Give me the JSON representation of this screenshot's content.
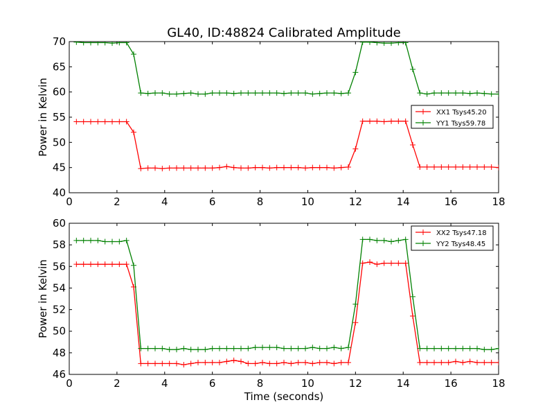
{
  "title": "GL40, ID:48824 Calibrated Amplitude",
  "colors": {
    "xx": "#ff0000",
    "yy": "#008000"
  },
  "chart_data": [
    {
      "type": "line",
      "ylabel": "Power in Kelvin",
      "xlabel": "",
      "xlim": [
        0,
        18
      ],
      "ylim": [
        40,
        70
      ],
      "xticks": [
        0,
        2,
        4,
        6,
        8,
        10,
        12,
        14,
        16,
        18
      ],
      "yticks": [
        40,
        45,
        50,
        55,
        60,
        65,
        70
      ],
      "legend_position": "right-middle",
      "series": [
        {
          "name": "XX1 Tsys45.20",
          "color": "#ff0000",
          "x": [
            0.3,
            0.6,
            0.9,
            1.2,
            1.5,
            1.8,
            2.1,
            2.4,
            2.7,
            3.0,
            3.3,
            3.6,
            3.9,
            4.2,
            4.5,
            4.8,
            5.1,
            5.4,
            5.7,
            6.0,
            6.3,
            6.6,
            6.9,
            7.2,
            7.5,
            7.8,
            8.1,
            8.4,
            8.7,
            9.0,
            9.3,
            9.6,
            9.9,
            10.2,
            10.5,
            10.8,
            11.1,
            11.4,
            11.7,
            12.0,
            12.3,
            12.6,
            12.9,
            13.2,
            13.5,
            13.8,
            14.1,
            14.4,
            14.7,
            15.0,
            15.3,
            15.6,
            15.9,
            16.2,
            16.5,
            16.8,
            17.1,
            17.4,
            17.7,
            18.0
          ],
          "y": [
            54.1,
            54.1,
            54.1,
            54.1,
            54.1,
            54.1,
            54.1,
            54.1,
            52.0,
            44.8,
            44.9,
            44.9,
            44.8,
            44.9,
            44.9,
            44.9,
            44.9,
            44.9,
            44.9,
            44.9,
            45.0,
            45.2,
            45.0,
            44.9,
            44.9,
            45.0,
            45.0,
            44.9,
            45.0,
            45.0,
            45.0,
            45.0,
            44.9,
            45.0,
            45.0,
            45.0,
            44.9,
            45.0,
            45.1,
            48.7,
            54.2,
            54.2,
            54.2,
            54.1,
            54.2,
            54.2,
            54.2,
            49.5,
            45.1,
            45.1,
            45.1,
            45.1,
            45.1,
            45.1,
            45.1,
            45.1,
            45.1,
            45.1,
            45.1,
            45.0
          ]
        },
        {
          "name": "YY1 Tsys59.78",
          "color": "#008000",
          "x": [
            0.3,
            0.6,
            0.9,
            1.2,
            1.5,
            1.8,
            2.1,
            2.4,
            2.7,
            3.0,
            3.3,
            3.6,
            3.9,
            4.2,
            4.5,
            4.8,
            5.1,
            5.4,
            5.7,
            6.0,
            6.3,
            6.6,
            6.9,
            7.2,
            7.5,
            7.8,
            8.1,
            8.4,
            8.7,
            9.0,
            9.3,
            9.6,
            9.9,
            10.2,
            10.5,
            10.8,
            11.1,
            11.4,
            11.7,
            12.0,
            12.3,
            12.6,
            12.9,
            13.2,
            13.5,
            13.8,
            14.1,
            14.4,
            14.7,
            15.0,
            15.3,
            15.6,
            15.9,
            16.2,
            16.5,
            16.8,
            17.1,
            17.4,
            17.7,
            18.0
          ],
          "y": [
            69.9,
            69.8,
            69.8,
            69.8,
            69.8,
            69.7,
            69.8,
            69.8,
            67.5,
            59.8,
            59.7,
            59.8,
            59.8,
            59.6,
            59.6,
            59.7,
            59.8,
            59.6,
            59.6,
            59.8,
            59.8,
            59.8,
            59.7,
            59.8,
            59.8,
            59.8,
            59.8,
            59.8,
            59.8,
            59.7,
            59.8,
            59.8,
            59.8,
            59.6,
            59.7,
            59.8,
            59.8,
            59.7,
            59.8,
            63.9,
            69.9,
            69.9,
            69.8,
            69.7,
            69.7,
            69.8,
            69.8,
            64.5,
            59.8,
            59.6,
            59.8,
            59.8,
            59.8,
            59.8,
            59.8,
            59.7,
            59.8,
            59.7,
            59.6,
            59.6
          ]
        }
      ]
    },
    {
      "type": "line",
      "ylabel": "Power in Kelvin",
      "xlabel": "Time (seconds)",
      "xlim": [
        0,
        18
      ],
      "ylim": [
        46,
        60
      ],
      "xticks": [
        0,
        2,
        4,
        6,
        8,
        10,
        12,
        14,
        16,
        18
      ],
      "yticks": [
        46,
        48,
        50,
        52,
        54,
        56,
        58,
        60
      ],
      "legend_position": "top-right",
      "series": [
        {
          "name": "XX2 Tsys47.18",
          "color": "#ff0000",
          "x": [
            0.3,
            0.6,
            0.9,
            1.2,
            1.5,
            1.8,
            2.1,
            2.4,
            2.7,
            3.0,
            3.3,
            3.6,
            3.9,
            4.2,
            4.5,
            4.8,
            5.1,
            5.4,
            5.7,
            6.0,
            6.3,
            6.6,
            6.9,
            7.2,
            7.5,
            7.8,
            8.1,
            8.4,
            8.7,
            9.0,
            9.3,
            9.6,
            9.9,
            10.2,
            10.5,
            10.8,
            11.1,
            11.4,
            11.7,
            12.0,
            12.3,
            12.6,
            12.9,
            13.2,
            13.5,
            13.8,
            14.1,
            14.4,
            14.7,
            15.0,
            15.3,
            15.6,
            15.9,
            16.2,
            16.5,
            16.8,
            17.1,
            17.4,
            17.7,
            18.0
          ],
          "y": [
            56.2,
            56.2,
            56.2,
            56.2,
            56.2,
            56.2,
            56.2,
            56.2,
            54.1,
            47.0,
            47.0,
            47.0,
            47.0,
            47.0,
            47.0,
            46.9,
            47.0,
            47.1,
            47.1,
            47.1,
            47.1,
            47.2,
            47.3,
            47.2,
            47.0,
            47.0,
            47.1,
            47.0,
            47.0,
            47.1,
            47.0,
            47.1,
            47.1,
            47.0,
            47.1,
            47.1,
            47.0,
            47.1,
            47.1,
            50.8,
            56.3,
            56.4,
            56.2,
            56.3,
            56.3,
            56.3,
            56.3,
            51.4,
            47.1,
            47.1,
            47.1,
            47.1,
            47.1,
            47.2,
            47.1,
            47.2,
            47.1,
            47.1,
            47.1,
            47.1
          ]
        },
        {
          "name": "YY2 Tsys48.45",
          "color": "#008000",
          "x": [
            0.3,
            0.6,
            0.9,
            1.2,
            1.5,
            1.8,
            2.1,
            2.4,
            2.7,
            3.0,
            3.3,
            3.6,
            3.9,
            4.2,
            4.5,
            4.8,
            5.1,
            5.4,
            5.7,
            6.0,
            6.3,
            6.6,
            6.9,
            7.2,
            7.5,
            7.8,
            8.1,
            8.4,
            8.7,
            9.0,
            9.3,
            9.6,
            9.9,
            10.2,
            10.5,
            10.8,
            11.1,
            11.4,
            11.7,
            12.0,
            12.3,
            12.6,
            12.9,
            13.2,
            13.5,
            13.8,
            14.1,
            14.4,
            14.7,
            15.0,
            15.3,
            15.6,
            15.9,
            16.2,
            16.5,
            16.8,
            17.1,
            17.4,
            17.7,
            18.0
          ],
          "y": [
            58.4,
            58.4,
            58.4,
            58.4,
            58.3,
            58.3,
            58.3,
            58.4,
            56.1,
            48.4,
            48.4,
            48.4,
            48.4,
            48.3,
            48.3,
            48.4,
            48.3,
            48.3,
            48.3,
            48.4,
            48.4,
            48.4,
            48.4,
            48.4,
            48.4,
            48.5,
            48.5,
            48.5,
            48.5,
            48.4,
            48.4,
            48.4,
            48.4,
            48.5,
            48.4,
            48.4,
            48.5,
            48.4,
            48.5,
            52.5,
            58.5,
            58.5,
            58.4,
            58.4,
            58.3,
            58.4,
            58.5,
            53.2,
            48.4,
            48.4,
            48.4,
            48.4,
            48.4,
            48.4,
            48.4,
            48.4,
            48.4,
            48.3,
            48.3,
            48.4
          ]
        }
      ]
    }
  ]
}
